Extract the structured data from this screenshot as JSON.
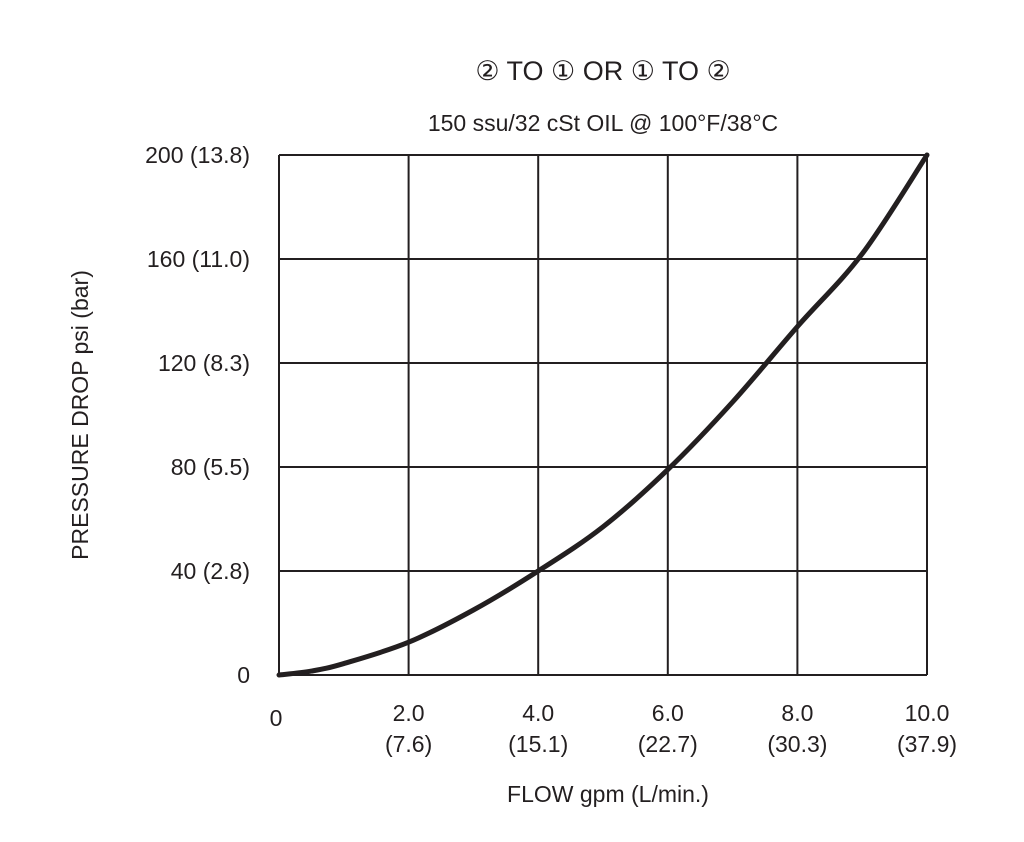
{
  "chart_data": {
    "type": "line",
    "title": "② TO ①  OR  ① TO ②",
    "subtitle": "150 ssu/32 cSt OIL @ 100°F/38°C",
    "xlabel": "FLOW gpm (L/min.)",
    "ylabel": "PRESSURE DROP psi (bar)",
    "xlim": [
      0,
      10
    ],
    "ylim": [
      0,
      200
    ],
    "grid": true,
    "x_ticks": [
      {
        "value": 0,
        "label": "0",
        "sub": ""
      },
      {
        "value": 2,
        "label": "2.0",
        "sub": "(7.6)"
      },
      {
        "value": 4,
        "label": "4.0",
        "sub": "(15.1)"
      },
      {
        "value": 6,
        "label": "6.0",
        "sub": "(22.7)"
      },
      {
        "value": 8,
        "label": "8.0",
        "sub": "(30.3)"
      },
      {
        "value": 10,
        "label": "10.0",
        "sub": "(37.9)"
      }
    ],
    "y_ticks": [
      {
        "value": 0,
        "label": "0"
      },
      {
        "value": 40,
        "label": "40 (2.8)"
      },
      {
        "value": 80,
        "label": "80 (5.5)"
      },
      {
        "value": 120,
        "label": "120 (8.3)"
      },
      {
        "value": 160,
        "label": "160 (11.0)"
      },
      {
        "value": 200,
        "label": "200 (13.8)"
      }
    ],
    "series": [
      {
        "name": "pressure drop",
        "color": "#231f20",
        "x": [
          0,
          0.5,
          1,
          2,
          3,
          4,
          5,
          6,
          7,
          8,
          9,
          10
        ],
        "y": [
          0,
          1.5,
          4.4,
          12.6,
          25,
          40,
          57,
          79,
          105,
          134,
          162,
          200
        ]
      }
    ]
  }
}
